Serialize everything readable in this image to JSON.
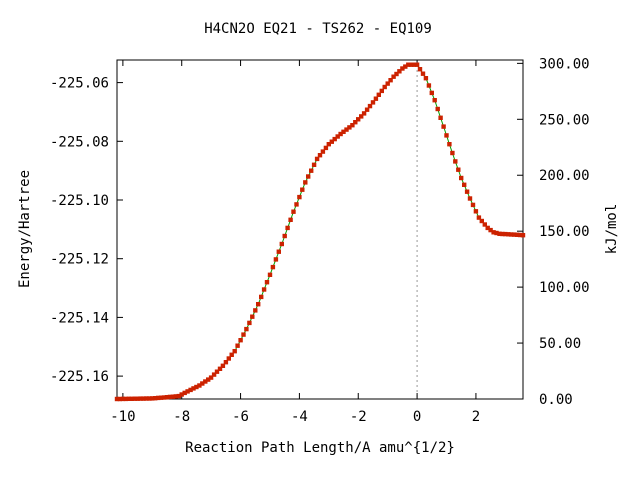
{
  "chart_data": {
    "type": "line",
    "title": "H4CN2O   EQ21 - TS262 - EQ109",
    "xlabel": "Reaction Path Length/A amu^{1/2}",
    "ylabel": "Energy/Hartree",
    "y2label": "kJ/mol",
    "xlim": [
      -10.2,
      3.6
    ],
    "ylim": [
      -225.1678,
      -225.0523
    ],
    "y2lim": [
      0.0,
      303.0
    ],
    "xticks": [
      -10,
      -8,
      -6,
      -4,
      -2,
      0,
      2
    ],
    "xtick_labels": [
      "-10",
      "-8",
      "-6",
      "-4",
      "-2",
      "0",
      "2"
    ],
    "yticks": [
      -225.06,
      -225.08,
      -225.1,
      -225.12,
      -225.14,
      -225.16
    ],
    "ytick_labels": [
      "-225.06",
      "-225.08",
      "-225.10",
      "-225.12",
      "-225.14",
      "-225.16"
    ],
    "y2ticks": [
      0,
      50,
      100,
      150,
      200,
      250,
      300
    ],
    "y2tick_labels": [
      "0.00",
      "50.00",
      "100.00",
      "150.00",
      "200.00",
      "250.00",
      "300.00"
    ],
    "ts_marker_x": 0.0,
    "grid": false,
    "line_color": "#00a000",
    "marker_color": "#cc2200",
    "series": [
      {
        "x": [
          -10.2,
          -9.6,
          -9.0,
          -8.5,
          -8.1,
          -7.8,
          -7.4,
          -7.0,
          -6.6,
          -6.2,
          -5.8,
          -5.4,
          -5.0,
          -4.6,
          -4.2,
          -3.8,
          -3.4,
          -3.0,
          -2.6,
          -2.2,
          -1.8,
          -1.4,
          -1.1,
          -0.8,
          -0.5,
          -0.3,
          0.0,
          0.3,
          0.6,
          0.9,
          1.2,
          1.5,
          1.8,
          2.1,
          2.4,
          2.6,
          2.8,
          3.1,
          3.3,
          3.6
        ],
        "y": [
          -225.1678,
          -225.1677,
          -225.1676,
          -225.1672,
          -225.1668,
          -225.1652,
          -225.1632,
          -225.1605,
          -225.1565,
          -225.1515,
          -225.144,
          -225.1355,
          -225.1255,
          -225.115,
          -225.104,
          -225.094,
          -225.086,
          -225.081,
          -225.0775,
          -225.0745,
          -225.0705,
          -225.0655,
          -225.0615,
          -225.058,
          -225.0552,
          -225.0539,
          -225.0539,
          -225.0585,
          -225.066,
          -225.075,
          -225.084,
          -225.0925,
          -225.0995,
          -225.106,
          -225.1095,
          -225.111,
          -225.1115,
          -225.1117,
          -225.1118,
          -225.112
        ]
      }
    ]
  }
}
